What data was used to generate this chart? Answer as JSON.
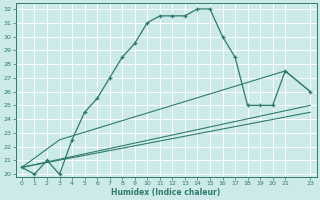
{
  "xlabel": "Humidex (Indice chaleur)",
  "xlim": [
    -0.5,
    23.5
  ],
  "ylim": [
    19.8,
    32.4
  ],
  "xticks": [
    0,
    1,
    2,
    3,
    4,
    5,
    6,
    7,
    8,
    9,
    10,
    11,
    12,
    13,
    14,
    15,
    16,
    17,
    18,
    19,
    20,
    21,
    23
  ],
  "yticks": [
    20,
    21,
    22,
    23,
    24,
    25,
    26,
    27,
    28,
    29,
    30,
    31,
    32
  ],
  "bg_color": "#cceaea",
  "line_color": "#2e7b6e",
  "grid_color": "#ffffff",
  "line1_x": [
    0,
    1,
    2,
    3,
    4,
    5,
    6,
    7,
    8,
    9,
    10,
    11,
    12,
    13,
    14,
    15,
    16,
    17,
    18,
    19,
    20,
    21,
    23
  ],
  "line1_y": [
    20.5,
    20.0,
    21.0,
    20.0,
    22.5,
    24.5,
    25.5,
    27.0,
    28.5,
    29.5,
    31.0,
    31.5,
    31.5,
    31.5,
    32.0,
    32.0,
    30.0,
    28.5,
    25.0,
    25.0,
    25.0,
    27.5,
    26.0
  ],
  "line2_x": [
    0,
    3,
    21,
    23
  ],
  "line2_y": [
    20.5,
    22.5,
    27.5,
    26.0
  ],
  "line3_x": [
    0,
    23
  ],
  "line3_y": [
    20.5,
    25.0
  ],
  "line4_x": [
    0,
    23
  ],
  "line4_y": [
    20.5,
    24.5
  ]
}
